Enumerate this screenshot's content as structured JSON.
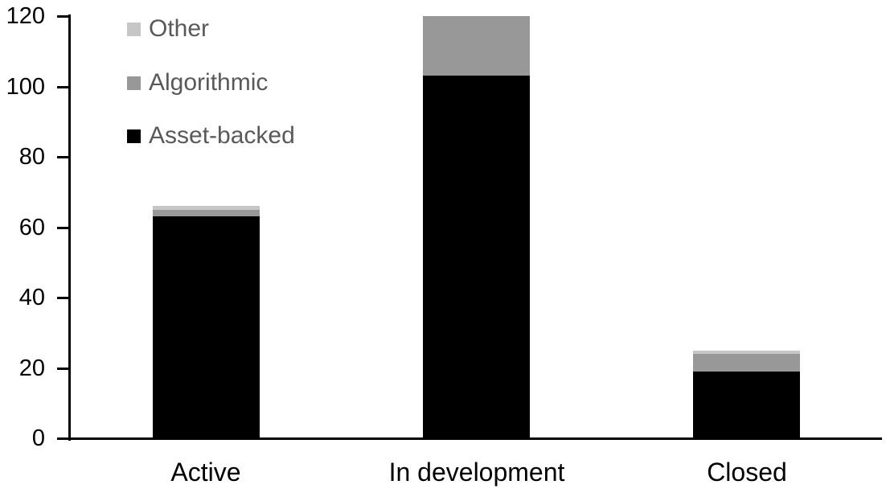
{
  "chart_data": {
    "type": "bar",
    "stacked": true,
    "title": "",
    "xlabel": "",
    "ylabel": "",
    "categories": [
      "Active",
      "In development",
      "Closed"
    ],
    "series": [
      {
        "name": "Asset-backed",
        "color": "#000000",
        "values": [
          63,
          103,
          19
        ]
      },
      {
        "name": "Algorithmic",
        "color": "#989898",
        "values": [
          2,
          17,
          5
        ]
      },
      {
        "name": "Other",
        "color": "#c6c6c6",
        "values": [
          1,
          0,
          1
        ]
      }
    ],
    "totals": [
      66,
      120,
      25
    ],
    "ylim": [
      0,
      120
    ],
    "yticks": [
      0,
      20,
      40,
      60,
      80,
      100,
      120
    ],
    "grid": false,
    "background_color": "#ffffff",
    "axis_color": "#000000",
    "legend": {
      "position": "top-left",
      "order": [
        "Other",
        "Algorithmic",
        "Asset-backed"
      ],
      "text_color": "#595959"
    }
  }
}
